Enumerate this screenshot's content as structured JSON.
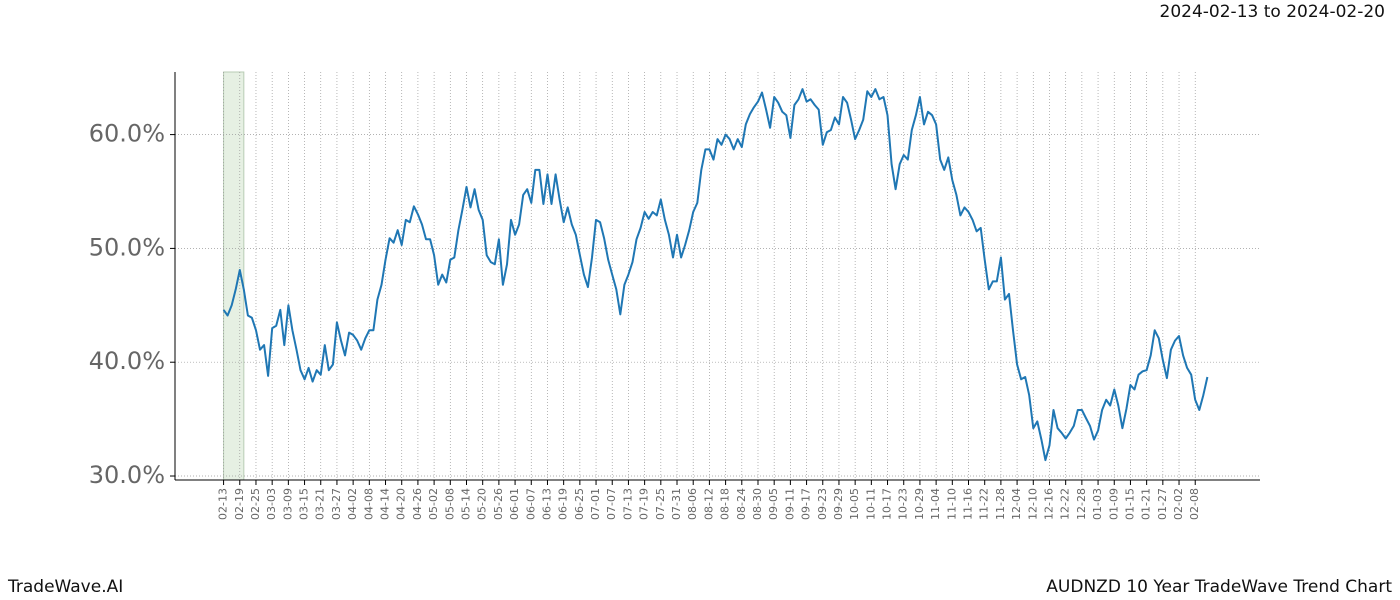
{
  "chart_data": {
    "type": "line",
    "header": "2024-02-13 to 2024-02-20",
    "footer_left": "TradeWave.AI",
    "footer_right": "AUDNZD 10 Year TradeWave Trend Chart",
    "xlim": [
      -12,
      256
    ],
    "ylim": [
      29.65,
      65.5
    ],
    "yticks": [
      {
        "value": 30,
        "label": "30.0%"
      },
      {
        "value": 40,
        "label": "40.0%"
      },
      {
        "value": 50,
        "label": "50.0%"
      },
      {
        "value": 60,
        "label": "60.0%"
      }
    ],
    "xticks": [
      {
        "value": 0,
        "label": "02-13"
      },
      {
        "value": 4,
        "label": "02-19"
      },
      {
        "value": 8,
        "label": "02-25"
      },
      {
        "value": 12,
        "label": "03-03"
      },
      {
        "value": 16,
        "label": "03-09"
      },
      {
        "value": 20,
        "label": "03-15"
      },
      {
        "value": 24,
        "label": "03-21"
      },
      {
        "value": 28,
        "label": "03-27"
      },
      {
        "value": 32,
        "label": "04-02"
      },
      {
        "value": 36,
        "label": "04-08"
      },
      {
        "value": 40,
        "label": "04-14"
      },
      {
        "value": 44,
        "label": "04-20"
      },
      {
        "value": 48,
        "label": "04-26"
      },
      {
        "value": 52,
        "label": "05-02"
      },
      {
        "value": 56,
        "label": "05-08"
      },
      {
        "value": 60,
        "label": "05-14"
      },
      {
        "value": 64,
        "label": "05-20"
      },
      {
        "value": 68,
        "label": "05-26"
      },
      {
        "value": 72,
        "label": "06-01"
      },
      {
        "value": 76,
        "label": "06-07"
      },
      {
        "value": 80,
        "label": "06-13"
      },
      {
        "value": 84,
        "label": "06-19"
      },
      {
        "value": 88,
        "label": "06-25"
      },
      {
        "value": 92,
        "label": "07-01"
      },
      {
        "value": 96,
        "label": "07-07"
      },
      {
        "value": 100,
        "label": "07-13"
      },
      {
        "value": 104,
        "label": "07-19"
      },
      {
        "value": 108,
        "label": "07-25"
      },
      {
        "value": 112,
        "label": "07-31"
      },
      {
        "value": 116,
        "label": "08-06"
      },
      {
        "value": 120,
        "label": "08-12"
      },
      {
        "value": 124,
        "label": "08-18"
      },
      {
        "value": 128,
        "label": "08-24"
      },
      {
        "value": 132,
        "label": "08-30"
      },
      {
        "value": 136,
        "label": "09-05"
      },
      {
        "value": 140,
        "label": "09-11"
      },
      {
        "value": 144,
        "label": "09-17"
      },
      {
        "value": 148,
        "label": "09-23"
      },
      {
        "value": 152,
        "label": "09-29"
      },
      {
        "value": 156,
        "label": "10-05"
      },
      {
        "value": 160,
        "label": "10-11"
      },
      {
        "value": 164,
        "label": "10-17"
      },
      {
        "value": 168,
        "label": "10-23"
      },
      {
        "value": 172,
        "label": "10-29"
      },
      {
        "value": 176,
        "label": "11-04"
      },
      {
        "value": 180,
        "label": "11-10"
      },
      {
        "value": 184,
        "label": "11-16"
      },
      {
        "value": 188,
        "label": "11-22"
      },
      {
        "value": 192,
        "label": "11-28"
      },
      {
        "value": 196,
        "label": "12-04"
      },
      {
        "value": 200,
        "label": "12-10"
      },
      {
        "value": 204,
        "label": "12-16"
      },
      {
        "value": 208,
        "label": "12-22"
      },
      {
        "value": 212,
        "label": "12-28"
      },
      {
        "value": 216,
        "label": "01-03"
      },
      {
        "value": 220,
        "label": "01-09"
      },
      {
        "value": 224,
        "label": "01-15"
      },
      {
        "value": 228,
        "label": "01-21"
      },
      {
        "value": 232,
        "label": "01-27"
      },
      {
        "value": 236,
        "label": "02-02"
      },
      {
        "value": 240,
        "label": "02-08"
      }
    ],
    "grid": true,
    "highlight_span": [
      0,
      5
    ],
    "highlight_color": "#e6f0e3",
    "color": "#1f77b4",
    "values": [
      44.6,
      44.1,
      45.0,
      46.4,
      48.1,
      46.4,
      44.1,
      43.9,
      42.8,
      41.1,
      41.5,
      38.8,
      43.0,
      43.2,
      44.6,
      41.5,
      45.0,
      42.8,
      41.1,
      39.3,
      38.5,
      39.5,
      38.3,
      39.3,
      38.9,
      41.5,
      39.3,
      39.8,
      43.5,
      41.9,
      40.6,
      42.6,
      42.4,
      41.9,
      41.1,
      42.1,
      42.8,
      42.8,
      45.5,
      46.8,
      49.0,
      50.9,
      50.5,
      51.6,
      50.3,
      52.5,
      52.3,
      53.7,
      53.0,
      52.1,
      50.8,
      50.8,
      49.4,
      46.8,
      47.7,
      47.0,
      49.0,
      49.2,
      51.6,
      53.4,
      55.4,
      53.6,
      55.2,
      53.4,
      52.5,
      49.4,
      48.8,
      48.6,
      50.8,
      46.8,
      48.6,
      52.5,
      51.2,
      52.1,
      54.7,
      55.2,
      54.0,
      56.9,
      56.9,
      53.9,
      56.5,
      53.9,
      56.5,
      54.3,
      52.3,
      53.6,
      52.1,
      51.2,
      49.4,
      47.7,
      46.6,
      49.2,
      52.5,
      52.3,
      50.9,
      49.0,
      47.7,
      46.4,
      44.2,
      46.8,
      47.7,
      48.8,
      50.8,
      51.8,
      53.2,
      52.6,
      53.2,
      52.9,
      54.3,
      52.5,
      51.2,
      49.2,
      51.2,
      49.2,
      50.3,
      51.6,
      53.2,
      54.0,
      56.9,
      58.7,
      58.7,
      57.8,
      59.6,
      59.1,
      60.0,
      59.6,
      58.7,
      59.6,
      58.9,
      60.9,
      61.8,
      62.4,
      62.9,
      63.7,
      62.2,
      60.6,
      63.3,
      62.8,
      62.0,
      61.7,
      59.7,
      62.6,
      63.1,
      64.0,
      62.9,
      63.1,
      62.6,
      62.2,
      59.1,
      60.2,
      60.4,
      61.5,
      60.9,
      63.3,
      62.8,
      61.3,
      59.6,
      60.4,
      61.3,
      63.8,
      63.3,
      64.0,
      63.1,
      63.3,
      61.7,
      57.4,
      55.2,
      57.4,
      58.2,
      57.8,
      60.4,
      61.7,
      63.3,
      60.9,
      62.0,
      61.7,
      60.9,
      57.8,
      56.9,
      58.0,
      56.0,
      54.7,
      52.9,
      53.6,
      53.2,
      52.5,
      51.5,
      51.8,
      49.0,
      46.4,
      47.1,
      47.1,
      49.2,
      45.5,
      46.0,
      42.8,
      39.8,
      38.5,
      38.7,
      37.1,
      34.2,
      34.8,
      33.2,
      31.4,
      32.7,
      35.8,
      34.2,
      33.8,
      33.3,
      33.8,
      34.4,
      35.8,
      35.8,
      35.1,
      34.4,
      33.2,
      34.0,
      35.8,
      36.7,
      36.2,
      37.6,
      36.2,
      34.2,
      35.9,
      38.0,
      37.6,
      38.9,
      39.2,
      39.3,
      40.6,
      42.8,
      42.1,
      40.2,
      38.6,
      41.1,
      41.9,
      42.3,
      40.6,
      39.5,
      38.9,
      36.7,
      35.8,
      37.1,
      38.7
    ]
  }
}
